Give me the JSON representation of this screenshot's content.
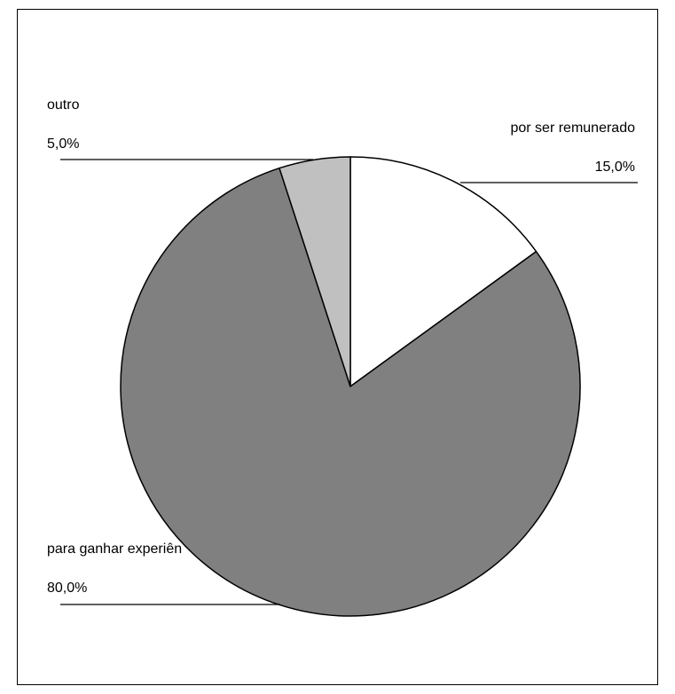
{
  "chart_data": {
    "type": "pie",
    "slices": [
      {
        "label": "por ser remunerado",
        "value": 15.0,
        "value_text": "15,0%",
        "color": "#ffffff"
      },
      {
        "label": "para ganhar experiên",
        "value": 80.0,
        "value_text": "80,0%",
        "color": "#808080"
      },
      {
        "label": "outro",
        "value": 5.0,
        "value_text": "5,0%",
        "color": "#c0c0c0"
      }
    ],
    "start_angle": "12 o'clock",
    "direction": "clockwise",
    "legend": "none",
    "outline_color": "#000000"
  }
}
